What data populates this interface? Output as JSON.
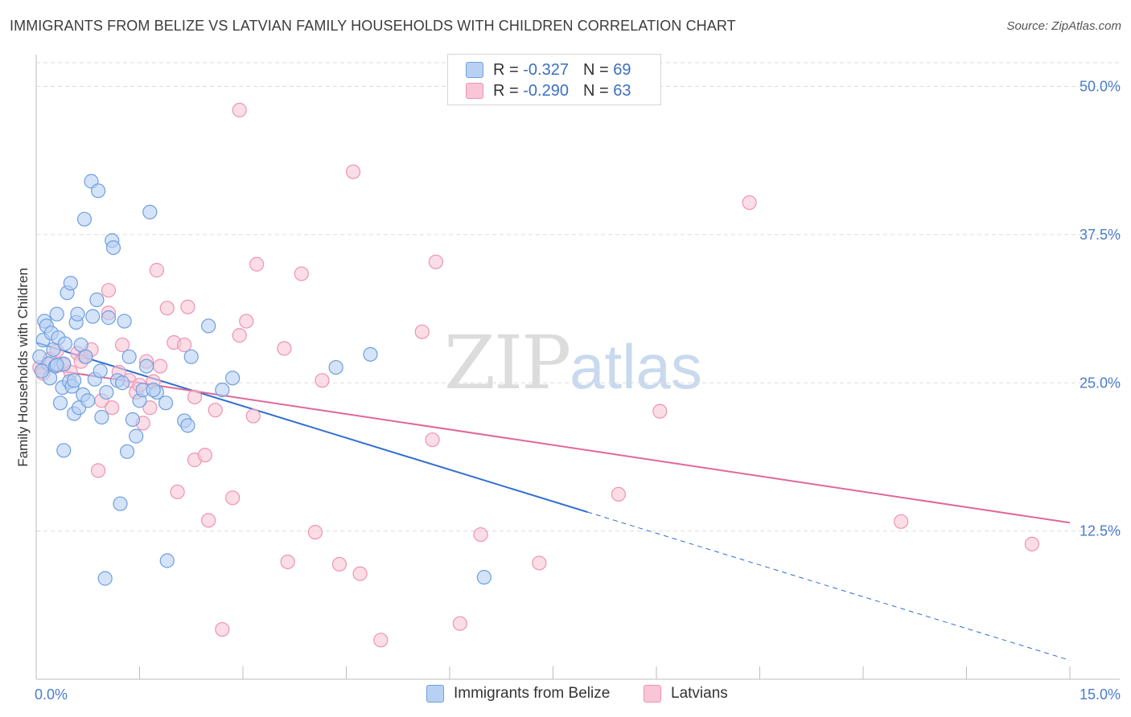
{
  "title": "IMMIGRANTS FROM BELIZE VS LATVIAN FAMILY HOUSEHOLDS WITH CHILDREN CORRELATION CHART",
  "source": "Source: ZipAtlas.com",
  "watermark": {
    "zip": "ZIP",
    "atlas": "atlas"
  },
  "legend_top": [
    {
      "r_label": "R =",
      "r_value": "-0.327",
      "n_label": "N =",
      "n_value": "69"
    },
    {
      "r_label": "R =",
      "r_value": "-0.290",
      "n_label": "N =",
      "n_value": "63"
    }
  ],
  "colors": {
    "belize_fill": "#b8d1f3",
    "belize_stroke": "#6f9fde",
    "belize_line": "#2f6fd1",
    "latvian_fill": "#f8c6d6",
    "latvian_stroke": "#ee93b2",
    "latvian_line": "#e0679a",
    "grid": "#dddddd",
    "tick_label": "#4a7cc9"
  },
  "chart_data": {
    "type": "scatter",
    "title": "IMMIGRANTS FROM BELIZE VS LATVIAN FAMILY HOUSEHOLDS WITH CHILDREN CORRELATION CHART",
    "xlabel": "",
    "ylabel": "Family Households with Children",
    "xlim": [
      0,
      15
    ],
    "ylim": [
      0,
      52
    ],
    "x_tick_labels": [
      "0.0%",
      "15.0%"
    ],
    "y_ticks": [
      12.5,
      25.0,
      37.5,
      50.0
    ],
    "y_tick_labels": [
      "12.5%",
      "25.0%",
      "37.5%",
      "50.0%"
    ],
    "grid": true,
    "legend_placement": "bottom",
    "series": [
      {
        "name": "Immigrants from Belize",
        "points": [
          [
            0.05,
            27.2
          ],
          [
            0.1,
            28.6
          ],
          [
            0.12,
            30.2
          ],
          [
            0.15,
            29.8
          ],
          [
            0.18,
            26.6
          ],
          [
            0.2,
            25.4
          ],
          [
            0.22,
            29.2
          ],
          [
            0.25,
            27.8
          ],
          [
            0.28,
            26.4
          ],
          [
            0.3,
            30.8
          ],
          [
            0.32,
            28.8
          ],
          [
            0.35,
            23.3
          ],
          [
            0.38,
            24.6
          ],
          [
            0.4,
            26.6
          ],
          [
            0.42,
            28.3
          ],
          [
            0.45,
            32.6
          ],
          [
            0.48,
            25.1
          ],
          [
            0.5,
            33.4
          ],
          [
            0.52,
            24.7
          ],
          [
            0.55,
            22.4
          ],
          [
            0.58,
            30.1
          ],
          [
            0.62,
            22.9
          ],
          [
            0.65,
            28.2
          ],
          [
            0.68,
            24.0
          ],
          [
            0.7,
            38.8
          ],
          [
            0.72,
            27.2
          ],
          [
            0.75,
            23.5
          ],
          [
            0.8,
            42.0
          ],
          [
            0.82,
            30.6
          ],
          [
            0.85,
            25.3
          ],
          [
            0.88,
            32.0
          ],
          [
            0.9,
            41.2
          ],
          [
            0.93,
            26.0
          ],
          [
            0.95,
            22.1
          ],
          [
            1.0,
            8.5
          ],
          [
            1.05,
            30.5
          ],
          [
            1.1,
            37.0
          ],
          [
            1.12,
            36.4
          ],
          [
            1.18,
            25.2
          ],
          [
            1.22,
            14.8
          ],
          [
            1.28,
            30.2
          ],
          [
            1.32,
            19.2
          ],
          [
            1.35,
            27.2
          ],
          [
            1.4,
            21.9
          ],
          [
            1.45,
            20.5
          ],
          [
            1.5,
            23.5
          ],
          [
            1.55,
            24.4
          ],
          [
            1.6,
            26.4
          ],
          [
            1.65,
            39.4
          ],
          [
            1.75,
            24.2
          ],
          [
            1.88,
            23.3
          ],
          [
            1.9,
            10.0
          ],
          [
            2.15,
            21.8
          ],
          [
            2.2,
            21.4
          ],
          [
            2.25,
            27.2
          ],
          [
            2.5,
            29.8
          ],
          [
            2.7,
            24.4
          ],
          [
            2.85,
            25.4
          ],
          [
            4.35,
            26.3
          ],
          [
            4.85,
            27.4
          ],
          [
            6.5,
            8.6
          ],
          [
            0.08,
            26.0
          ],
          [
            0.6,
            30.8
          ],
          [
            1.25,
            25.0
          ],
          [
            0.4,
            19.3
          ],
          [
            1.02,
            24.2
          ],
          [
            0.3,
            26.5
          ],
          [
            0.55,
            25.2
          ],
          [
            1.7,
            24.4
          ]
        ],
        "trend": {
          "x0": 0.0,
          "y0": 28.4,
          "x1": 8.0,
          "y1": 14.1,
          "dashed_to_x": 15.0,
          "dashed_to_y": 1.6
        }
      },
      {
        "name": "Latvians",
        "points": [
          [
            0.05,
            26.3
          ],
          [
            0.1,
            25.8
          ],
          [
            0.2,
            27.0
          ],
          [
            0.3,
            27.7
          ],
          [
            0.4,
            26.5
          ],
          [
            0.5,
            25.9
          ],
          [
            0.6,
            27.5
          ],
          [
            0.7,
            27.2
          ],
          [
            0.8,
            27.8
          ],
          [
            0.9,
            17.6
          ],
          [
            0.95,
            23.5
          ],
          [
            1.05,
            32.8
          ],
          [
            1.1,
            22.9
          ],
          [
            1.2,
            25.9
          ],
          [
            1.25,
            28.2
          ],
          [
            1.35,
            25.2
          ],
          [
            1.45,
            24.2
          ],
          [
            1.55,
            21.6
          ],
          [
            1.6,
            26.8
          ],
          [
            1.7,
            25.1
          ],
          [
            1.75,
            34.5
          ],
          [
            1.8,
            26.4
          ],
          [
            1.9,
            31.3
          ],
          [
            2.0,
            28.4
          ],
          [
            2.05,
            15.8
          ],
          [
            2.15,
            28.2
          ],
          [
            2.2,
            31.4
          ],
          [
            2.3,
            23.8
          ],
          [
            2.3,
            18.5
          ],
          [
            2.45,
            18.9
          ],
          [
            2.5,
            13.4
          ],
          [
            2.6,
            22.7
          ],
          [
            2.7,
            4.2
          ],
          [
            2.85,
            15.3
          ],
          [
            2.95,
            29.0
          ],
          [
            3.05,
            30.2
          ],
          [
            3.15,
            22.2
          ],
          [
            3.2,
            35.0
          ],
          [
            3.6,
            27.9
          ],
          [
            3.65,
            9.9
          ],
          [
            3.85,
            34.2
          ],
          [
            4.05,
            12.4
          ],
          [
            4.15,
            25.2
          ],
          [
            4.4,
            9.7
          ],
          [
            4.6,
            42.8
          ],
          [
            4.7,
            8.9
          ],
          [
            5.0,
            3.3
          ],
          [
            5.6,
            29.3
          ],
          [
            5.75,
            20.2
          ],
          [
            5.8,
            35.2
          ],
          [
            6.15,
            4.7
          ],
          [
            6.45,
            12.2
          ],
          [
            7.3,
            9.8
          ],
          [
            8.45,
            15.6
          ],
          [
            9.05,
            22.6
          ],
          [
            10.35,
            40.2
          ],
          [
            12.55,
            13.3
          ],
          [
            14.45,
            11.4
          ],
          [
            2.95,
            48.0
          ],
          [
            1.05,
            30.9
          ],
          [
            0.65,
            26.8
          ],
          [
            1.5,
            24.8
          ],
          [
            1.65,
            22.9
          ]
        ],
        "trend": {
          "x0": 0.0,
          "y0": 26.3,
          "x1": 15.0,
          "y1": 13.2
        }
      }
    ]
  },
  "legend_bottom": [
    "Immigrants from Belize",
    "Latvians"
  ]
}
